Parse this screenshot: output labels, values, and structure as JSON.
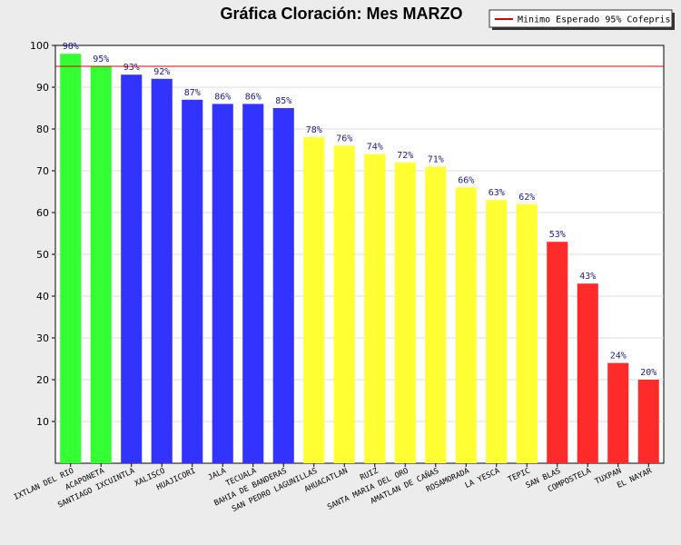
{
  "chart_data": {
    "type": "bar",
    "title": "Gráfica Cloración: Mes MARZO",
    "xlabel": "",
    "ylabel": "",
    "ylim": [
      0,
      100
    ],
    "yticks": [
      10,
      20,
      30,
      40,
      50,
      60,
      70,
      80,
      90,
      100
    ],
    "grid": true,
    "legend_position": "top-right",
    "categories": [
      "IXTLAN DEL RIO",
      "ACAPONETA",
      "SANTIAGO IXCUINTLA",
      "XALISCO",
      "HUAJICORI",
      "JALA",
      "TECUALA",
      "BAHIA DE BANDERAS",
      "SAN PEDRO LAGUNILLAS",
      "AHUACATLAN",
      "RUIZ",
      "SANTA MARIA DEL ORO",
      "AMATLAN DE CAÑAS",
      "ROSAMORADA",
      "LA YESCA",
      "TEPIC",
      "SAN BLAS",
      "COMPOSTELA",
      "TUXPAN",
      "EL NAYAR"
    ],
    "values": [
      98,
      95,
      93,
      92,
      87,
      86,
      86,
      85,
      78,
      76,
      74,
      72,
      71,
      66,
      63,
      62,
      53,
      43,
      24,
      20
    ],
    "value_labels": [
      "98%",
      "95%",
      "93%",
      "92%",
      "87%",
      "86%",
      "86%",
      "85%",
      "78%",
      "76%",
      "74%",
      "72%",
      "71%",
      "66%",
      "63%",
      "62%",
      "53%",
      "43%",
      "24%",
      "20%"
    ],
    "bar_colors": [
      "#33ff33",
      "#33ff33",
      "#3333ff",
      "#3333ff",
      "#3333ff",
      "#3333ff",
      "#3333ff",
      "#3333ff",
      "#ffff33",
      "#ffff33",
      "#ffff33",
      "#ffff33",
      "#ffff33",
      "#ffff33",
      "#ffff33",
      "#ffff33",
      "#ff2b2b",
      "#ff2b2b",
      "#ff2b2b",
      "#ff2b2b"
    ],
    "reference_line": {
      "value": 95,
      "label": "Minimo Esperado 95% Cofepris",
      "color": "#e00000"
    }
  },
  "colors": {
    "page_background": "#ececec",
    "plot_background": "#ffffff",
    "grid": "#dcdcdc",
    "value_label": "#1a1a8c"
  }
}
